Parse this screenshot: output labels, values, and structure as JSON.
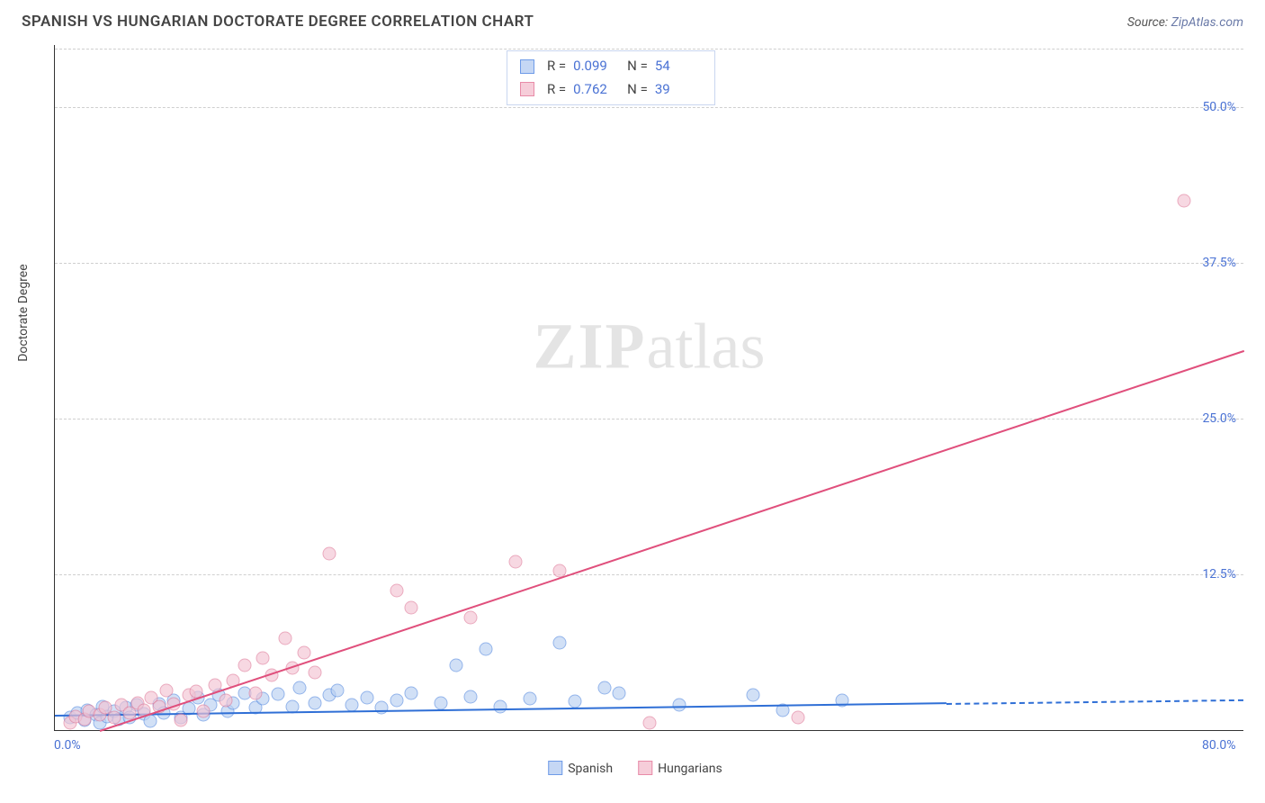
{
  "header": {
    "title": "SPANISH VS HUNGARIAN DOCTORATE DEGREE CORRELATION CHART",
    "source_label": "Source:",
    "source_value": "ZipAtlas.com"
  },
  "chart": {
    "type": "scatter",
    "ylabel": "Doctorate Degree",
    "background_color": "#ffffff",
    "grid_color": "#cfcfcf",
    "axis_color": "#333333",
    "tick_color": "#4a72d4",
    "xlim": [
      0,
      80
    ],
    "ylim": [
      0,
      55
    ],
    "yticks": [
      {
        "v": 12.5,
        "label": "12.5%"
      },
      {
        "v": 25.0,
        "label": "25.0%"
      },
      {
        "v": 37.5,
        "label": "37.5%"
      },
      {
        "v": 50.0,
        "label": "50.0%"
      }
    ],
    "xticks": [
      {
        "v": 0,
        "label": "0.0%"
      },
      {
        "v": 80,
        "label": "80.0%"
      }
    ],
    "watermark": {
      "bold": "ZIP",
      "rest": "atlas"
    },
    "legend_top": [
      {
        "swatch_fill": "#c5d7f4",
        "swatch_border": "#6e9be8",
        "r_label": "R =",
        "r": "0.099",
        "n_label": "N =",
        "n": "54"
      },
      {
        "swatch_fill": "#f6cdd9",
        "swatch_border": "#e88ba8",
        "r_label": "R =",
        "r": "0.762",
        "n_label": "N =",
        "n": "39"
      }
    ],
    "legend_bottom": [
      {
        "swatch_fill": "#c5d7f4",
        "swatch_border": "#6e9be8",
        "label": "Spanish"
      },
      {
        "swatch_fill": "#f6cdd9",
        "swatch_border": "#e88ba8",
        "label": "Hungarians"
      }
    ],
    "series": [
      {
        "name": "Spanish",
        "marker_fill": "#b9d0f2",
        "marker_border": "#5a8de0",
        "marker_size": 15,
        "line_color": "#2f6fd6",
        "trend": {
          "x1": 0,
          "y1": 1.2,
          "x2": 60,
          "y2": 2.2,
          "dash_x2": 80,
          "dash_y2": 2.5
        },
        "points": [
          [
            1,
            1.0
          ],
          [
            1.5,
            1.4
          ],
          [
            2,
            0.8
          ],
          [
            2.2,
            1.6
          ],
          [
            2.8,
            1.2
          ],
          [
            3,
            0.6
          ],
          [
            3.2,
            1.9
          ],
          [
            3.5,
            1.1
          ],
          [
            4,
            1.5
          ],
          [
            4.3,
            0.9
          ],
          [
            4.8,
            1.8
          ],
          [
            5,
            1.0
          ],
          [
            5.5,
            2.0
          ],
          [
            6,
            1.3
          ],
          [
            6.4,
            0.7
          ],
          [
            7,
            2.1
          ],
          [
            7.3,
            1.4
          ],
          [
            8,
            2.4
          ],
          [
            8.5,
            1.0
          ],
          [
            9,
            1.7
          ],
          [
            9.6,
            2.6
          ],
          [
            10,
            1.2
          ],
          [
            10.5,
            2.0
          ],
          [
            11,
            2.8
          ],
          [
            11.6,
            1.5
          ],
          [
            12,
            2.2
          ],
          [
            12.8,
            3.0
          ],
          [
            13.5,
            1.8
          ],
          [
            14,
            2.5
          ],
          [
            15,
            2.9
          ],
          [
            16,
            1.9
          ],
          [
            16.5,
            3.4
          ],
          [
            17.5,
            2.2
          ],
          [
            18.5,
            2.8
          ],
          [
            19,
            3.2
          ],
          [
            20,
            2.0
          ],
          [
            21,
            2.6
          ],
          [
            22,
            1.8
          ],
          [
            23,
            2.4
          ],
          [
            24,
            3.0
          ],
          [
            26,
            2.2
          ],
          [
            27,
            5.2
          ],
          [
            28,
            2.7
          ],
          [
            29,
            6.5
          ],
          [
            30,
            1.9
          ],
          [
            32,
            2.5
          ],
          [
            34,
            7.0
          ],
          [
            35,
            2.3
          ],
          [
            37,
            3.4
          ],
          [
            38,
            3.0
          ],
          [
            42,
            2.0
          ],
          [
            47,
            2.8
          ],
          [
            49,
            1.6
          ],
          [
            53,
            2.4
          ]
        ]
      },
      {
        "name": "Hungarians",
        "marker_fill": "#f3c4d3",
        "marker_border": "#e07d9c",
        "marker_size": 15,
        "line_color": "#e04f7c",
        "trend": {
          "x1": 3,
          "y1": 0,
          "x2": 80,
          "y2": 30.5
        },
        "points": [
          [
            1,
            0.6
          ],
          [
            1.4,
            1.1
          ],
          [
            2,
            0.9
          ],
          [
            2.3,
            1.5
          ],
          [
            3,
            1.2
          ],
          [
            3.4,
            1.8
          ],
          [
            4,
            1.0
          ],
          [
            4.5,
            2.0
          ],
          [
            5,
            1.4
          ],
          [
            5.6,
            2.2
          ],
          [
            6,
            1.6
          ],
          [
            6.5,
            2.6
          ],
          [
            7,
            1.9
          ],
          [
            7.5,
            3.2
          ],
          [
            8,
            2.1
          ],
          [
            8.5,
            0.8
          ],
          [
            9,
            2.8
          ],
          [
            9.5,
            3.1
          ],
          [
            10,
            1.5
          ],
          [
            10.8,
            3.6
          ],
          [
            11.5,
            2.4
          ],
          [
            12,
            4.0
          ],
          [
            12.8,
            5.2
          ],
          [
            13.5,
            3.0
          ],
          [
            14,
            5.8
          ],
          [
            14.6,
            4.4
          ],
          [
            15.5,
            7.4
          ],
          [
            16,
            5.0
          ],
          [
            16.8,
            6.2
          ],
          [
            17.5,
            4.6
          ],
          [
            18.5,
            14.2
          ],
          [
            23,
            11.2
          ],
          [
            24,
            9.8
          ],
          [
            28,
            9.0
          ],
          [
            31,
            13.5
          ],
          [
            34,
            12.8
          ],
          [
            40,
            0.6
          ],
          [
            50,
            1.0
          ],
          [
            76,
            42.5
          ]
        ]
      }
    ]
  }
}
